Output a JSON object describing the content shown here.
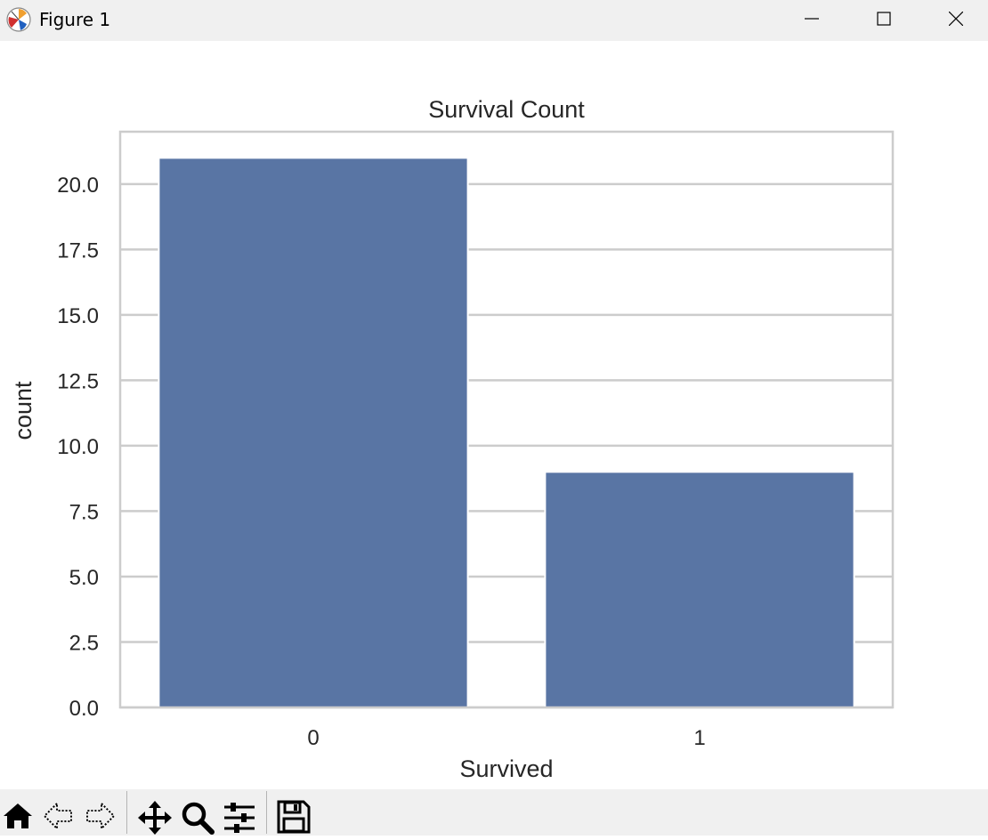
{
  "window": {
    "title": "Figure 1"
  },
  "toolbar": {
    "buttons": [
      "home-icon",
      "back-icon",
      "forward-icon",
      "pan-icon",
      "zoom-icon",
      "subplots-icon",
      "save-icon"
    ]
  },
  "chart_data": {
    "type": "bar",
    "title": "Survival Count",
    "xlabel": "Survived",
    "ylabel": "count",
    "categories": [
      "0",
      "1"
    ],
    "values": [
      21,
      9
    ],
    "ylim": [
      0,
      22
    ],
    "yticks": [
      0.0,
      2.5,
      5.0,
      7.5,
      10.0,
      12.5,
      15.0,
      17.5,
      20.0
    ],
    "ytick_labels": [
      "0.0",
      "2.5",
      "5.0",
      "7.5",
      "10.0",
      "12.5",
      "15.0",
      "17.5",
      "20.0"
    ],
    "grid": true,
    "bar_color": "#5975a4",
    "grid_color": "#cccccc"
  }
}
